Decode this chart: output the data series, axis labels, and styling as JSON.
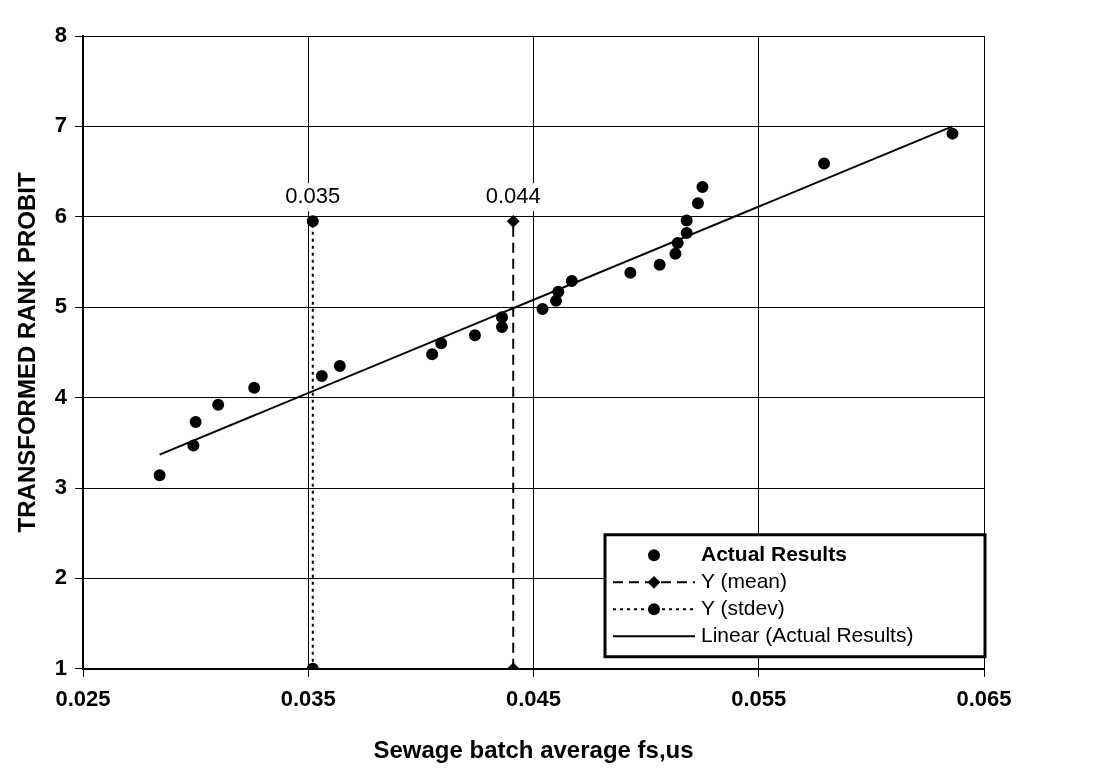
{
  "chart_data": {
    "type": "scatter",
    "xlabel": "Sewage batch average fs,us",
    "ylabel": "TRANSFORMED RANK PROBIT",
    "series": [
      {
        "name": "Actual Results",
        "color": "#000000",
        "marker": "circle",
        "x": [
          0.0284,
          0.0299,
          0.03,
          0.031,
          0.0326,
          0.0356,
          0.0364,
          0.0405,
          0.0409,
          0.0424,
          0.0436,
          0.0436,
          0.0454,
          0.046,
          0.0461,
          0.0467,
          0.0493,
          0.0506,
          0.0513,
          0.0514,
          0.0518,
          0.0518,
          0.0523,
          0.0525,
          0.0579,
          0.0636
        ],
        "values": [
          3.14,
          3.47,
          3.73,
          3.92,
          4.11,
          4.24,
          4.35,
          4.48,
          4.6,
          4.69,
          4.78,
          4.89,
          4.98,
          5.07,
          5.17,
          5.29,
          5.38,
          5.47,
          5.59,
          5.71,
          5.82,
          5.96,
          6.15,
          6.33,
          6.59,
          6.92
        ]
      },
      {
        "name": "Y (mean)",
        "type": "line",
        "color": "#000000",
        "marker": "diamond",
        "line_style": "dashed",
        "x": [
          0.0441,
          0.0441
        ],
        "values": [
          1,
          5.95
        ]
      },
      {
        "name": "Y (stdev)",
        "type": "line",
        "color": "#000000",
        "marker": "circle",
        "line_style": "dotted",
        "x": [
          0.0352,
          0.0352
        ],
        "values": [
          1,
          5.95
        ]
      },
      {
        "name": "Linear (Actual Results)",
        "type": "line",
        "color": "#000000",
        "marker": "none",
        "line_style": "solid",
        "x": [
          0.0284,
          0.0636
        ],
        "values": [
          3.37,
          7.0
        ]
      }
    ],
    "annotations": [
      {
        "text": "0.035",
        "x": 0.0352,
        "y": 5.95
      },
      {
        "text": "0.044",
        "x": 0.0441,
        "y": 5.95
      }
    ],
    "xlim": [
      0.025,
      0.065
    ],
    "xticks": [
      0.025,
      0.035,
      0.045,
      0.055,
      0.065
    ],
    "ylim": [
      1,
      8
    ],
    "yticks": [
      1,
      2,
      3,
      4,
      5,
      6,
      7,
      8
    ],
    "grid": true,
    "legend": "bottom right"
  }
}
